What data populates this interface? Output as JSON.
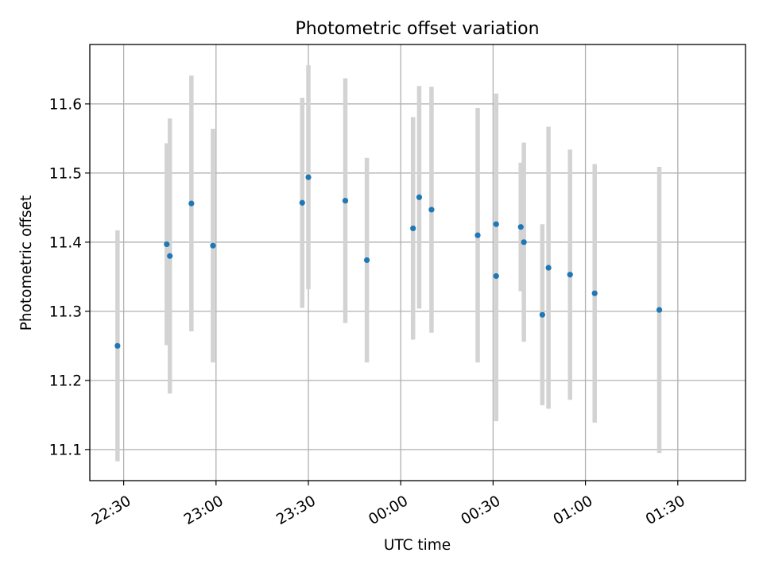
{
  "chart_data": {
    "type": "scatter",
    "title": "Photometric offset variation",
    "xlabel": "UTC time",
    "ylabel": "Photometric offset",
    "x_tick_labels": [
      "22:30",
      "23:00",
      "23:30",
      "00:00",
      "00:30",
      "01:00",
      "01:30"
    ],
    "y_ticks": [
      11.1,
      11.2,
      11.3,
      11.4,
      11.5,
      11.6
    ],
    "y_tick_labels": [
      "11.1",
      "11.2",
      "11.3",
      "11.4",
      "11.5",
      "11.6"
    ],
    "ylim": [
      11.055,
      11.686
    ],
    "grid": true,
    "marker_color": "#1f77b4",
    "errorbar_color": "#d3d3d3",
    "series": [
      {
        "x": [
          "22:28",
          "22:44",
          "22:45",
          "22:52",
          "22:59",
          "23:28",
          "23:30",
          "23:42",
          "23:49",
          "00:04",
          "00:06",
          "00:10",
          "00:25",
          "00:31",
          "00:31",
          "00:39",
          "00:40",
          "00:46",
          "00:48",
          "00:55",
          "01:03",
          "01:24"
        ],
        "y": [
          11.25,
          11.397,
          11.38,
          11.456,
          11.395,
          11.457,
          11.494,
          11.46,
          11.374,
          11.42,
          11.465,
          11.447,
          11.41,
          11.351,
          11.426,
          11.422,
          11.4,
          11.295,
          11.363,
          11.353,
          11.326,
          11.302
        ],
        "yerr": [
          0.167,
          0.146,
          0.199,
          0.185,
          0.169,
          0.152,
          0.162,
          0.177,
          0.148,
          0.161,
          0.161,
          0.178,
          0.184,
          0.21,
          0.189,
          0.093,
          0.144,
          0.131,
          0.204,
          0.181,
          0.187,
          0.207
        ]
      }
    ]
  }
}
